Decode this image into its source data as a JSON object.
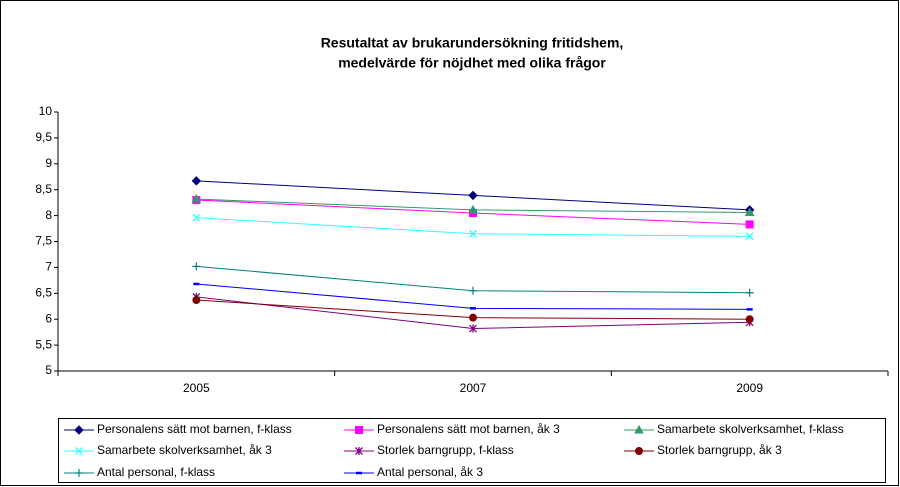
{
  "chart_data": {
    "type": "line",
    "title": [
      "Resutaltat av brukarundersökning fritidshem,",
      "medelvärde för nöjdhet med olika frågor"
    ],
    "categories": [
      "2005",
      "2007",
      "2009"
    ],
    "ylim": [
      5,
      10
    ],
    "yticks": [
      {
        "value": 5,
        "label": "5"
      },
      {
        "value": 5.5,
        "label": "5,5"
      },
      {
        "value": 6,
        "label": "6"
      },
      {
        "value": 6.5,
        "label": "6,5"
      },
      {
        "value": 7,
        "label": "7"
      },
      {
        "value": 7.5,
        "label": "7,5"
      },
      {
        "value": 8,
        "label": "8"
      },
      {
        "value": 8.5,
        "label": "8,5"
      },
      {
        "value": 9,
        "label": "9"
      },
      {
        "value": 9.5,
        "label": "9,5"
      },
      {
        "value": 10,
        "label": "10"
      }
    ],
    "grid": false,
    "legend": "bottom",
    "series": [
      {
        "name": "Personalens sätt mot barnen, f-klass",
        "color": "#000080",
        "marker": "diamond",
        "values": [
          8.67,
          8.39,
          8.11
        ]
      },
      {
        "name": "Personalens sätt mot barnen, åk 3",
        "color": "#ff00ff",
        "marker": "square",
        "values": [
          8.3,
          8.05,
          7.83
        ]
      },
      {
        "name": "Samarbete skolverksamhet, f-klass",
        "color": "#339966",
        "marker": "triangle",
        "values": [
          8.32,
          8.11,
          8.06
        ]
      },
      {
        "name": "Samarbete skolverksamhet, åk 3",
        "color": "#33ffff",
        "marker": "x",
        "values": [
          7.96,
          7.65,
          7.6
        ]
      },
      {
        "name": "Storlek barngrupp, f-klass",
        "color": "#800080",
        "marker": "star",
        "values": [
          6.43,
          5.82,
          5.94
        ]
      },
      {
        "name": "Storlek barngrupp, åk 3",
        "color": "#800000",
        "marker": "circle",
        "values": [
          6.37,
          6.03,
          6.0
        ]
      },
      {
        "name": "Antal personal, f-klass",
        "color": "#008080",
        "marker": "plus",
        "values": [
          7.02,
          6.55,
          6.51
        ]
      },
      {
        "name": "Antal personal, åk 3",
        "color": "#0000ff",
        "marker": "dash",
        "values": [
          6.68,
          6.21,
          6.19
        ]
      }
    ]
  }
}
